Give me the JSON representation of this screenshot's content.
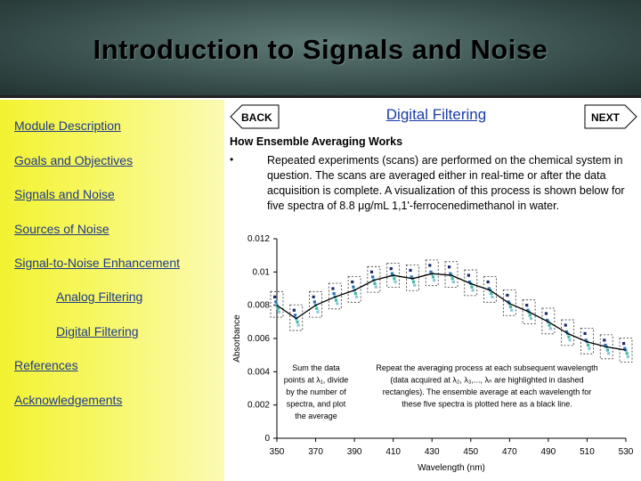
{
  "header": {
    "title": "Introduction to Signals and Noise"
  },
  "sidebar": {
    "items": [
      {
        "label": "Module Description"
      },
      {
        "label": "Goals and Objectives"
      },
      {
        "label": "Signals and Noise"
      },
      {
        "label": "Sources of Noise"
      },
      {
        "label": "Signal-to-Noise Enhancement"
      },
      {
        "label": "Analog Filtering"
      },
      {
        "label": "Digital Filtering"
      },
      {
        "label": "References"
      },
      {
        "label": "Acknowledgements"
      }
    ]
  },
  "nav": {
    "back_label": "BACK",
    "next_label": "NEXT"
  },
  "main": {
    "section_title": "Digital Filtering",
    "sub_heading": "How Ensemble Averaging Works",
    "bullet_symbol": "•",
    "bullet_text": "Repeated experiments (scans) are performed on the chemical system in question. The scans are averaged either in real-time or after the data acquisition is complete. A visualization of this process is shown below for five spectra of 8.8 μg/mL 1,1'-ferrocenedimethanol in water."
  },
  "chart_data": {
    "type": "scatter",
    "xlabel": "Wavelength (nm)",
    "ylabel": "Absorbance",
    "xlim": [
      350,
      530
    ],
    "ylim": [
      0,
      0.012
    ],
    "x_ticks": [
      "350",
      "370",
      "390",
      "410",
      "430",
      "450",
      "470",
      "490",
      "510",
      "530"
    ],
    "y_ticks": [
      "0",
      "0.002",
      "0.004",
      "0.006",
      "0.008",
      "0.01",
      "0.012"
    ],
    "x": [
      350,
      360,
      370,
      380,
      390,
      400,
      410,
      420,
      430,
      440,
      450,
      460,
      470,
      480,
      490,
      500,
      510,
      520,
      530
    ],
    "series": [
      {
        "values": [
          0.0085,
          0.0077,
          0.0085,
          0.009,
          0.0094,
          0.01,
          0.0102,
          0.0101,
          0.0104,
          0.0103,
          0.0098,
          0.0094,
          0.0086,
          0.008,
          0.0075,
          0.0068,
          0.0063,
          0.0059,
          0.0057
        ]
      },
      {
        "values": [
          0.0082,
          0.0074,
          0.0082,
          0.0087,
          0.0091,
          0.0097,
          0.0099,
          0.0097,
          0.01,
          0.0099,
          0.0094,
          0.009,
          0.0082,
          0.0077,
          0.0071,
          0.0064,
          0.0059,
          0.0056,
          0.0054
        ]
      },
      {
        "values": [
          0.008,
          0.0072,
          0.008,
          0.0085,
          0.0089,
          0.0095,
          0.0098,
          0.0096,
          0.0099,
          0.0098,
          0.0093,
          0.0089,
          0.0081,
          0.0076,
          0.007,
          0.0063,
          0.0058,
          0.0055,
          0.0053
        ]
      },
      {
        "values": [
          0.0078,
          0.007,
          0.0078,
          0.0083,
          0.0087,
          0.0093,
          0.0096,
          0.0094,
          0.0097,
          0.0096,
          0.0091,
          0.0087,
          0.0079,
          0.0074,
          0.0068,
          0.0061,
          0.0056,
          0.0053,
          0.0051
        ]
      },
      {
        "values": [
          0.0076,
          0.0068,
          0.0076,
          0.0081,
          0.0085,
          0.0091,
          0.0094,
          0.0092,
          0.0095,
          0.0094,
          0.0089,
          0.0085,
          0.0077,
          0.0072,
          0.0066,
          0.0059,
          0.0054,
          0.0051,
          0.0049
        ]
      }
    ],
    "average": [
      0.008,
      0.0072,
      0.008,
      0.0085,
      0.0089,
      0.0095,
      0.0098,
      0.0096,
      0.0099,
      0.0098,
      0.0093,
      0.0089,
      0.0081,
      0.0076,
      0.007,
      0.0063,
      0.0058,
      0.0055,
      0.0053
    ],
    "annotations": [
      {
        "lines": [
          "Sum the data",
          "points at λ₁, divide",
          "by the number of",
          "spectra, and plot",
          "the average"
        ]
      },
      {
        "lines": [
          "Repeat the averaging process at each subsequent wavelength",
          "(data acquired at λ₂, λ₃,..., λₙ are highlighted in dashed",
          "rectangles). The ensemble average at each wavelength for",
          "these five spectra is plotted here as a black line."
        ]
      }
    ],
    "colors": {
      "average": "#000000",
      "points": [
        "#1b2a6b",
        "#2b6fb0",
        "#3fa0c8",
        "#44b8a0",
        "#88c8d8"
      ]
    },
    "grid": false
  }
}
